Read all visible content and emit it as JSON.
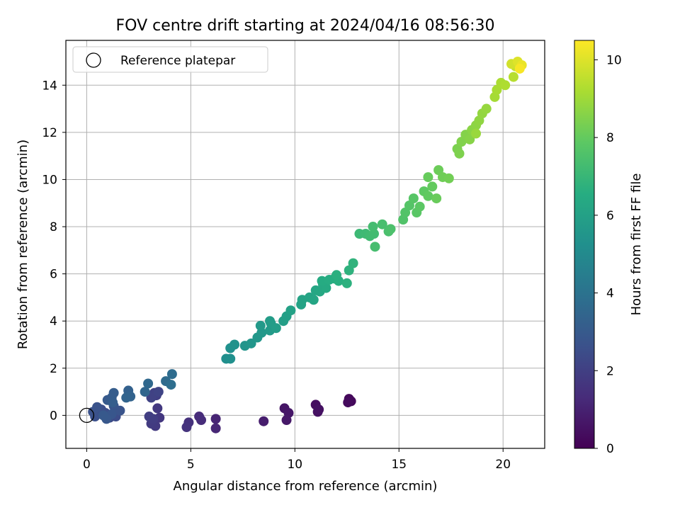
{
  "chart_data": {
    "type": "scatter",
    "title": "FOV centre drift starting at 2024/04/16 08:56:30",
    "xlabel": "Angular distance from reference (arcmin)",
    "ylabel": "Rotation from reference (arcmin)",
    "xlim": [
      -1,
      22
    ],
    "ylim": [
      -1.4,
      15.9
    ],
    "xticks": [
      0,
      5,
      10,
      15,
      20
    ],
    "yticks": [
      0,
      2,
      4,
      6,
      8,
      10,
      12,
      14
    ],
    "grid": true,
    "legend": {
      "position": "top-left",
      "entries": [
        "Reference platepar"
      ]
    },
    "colorbar": {
      "label": "Hours from first FF file",
      "colormap": "viridis",
      "range": [
        0,
        10.5
      ],
      "ticks": [
        0,
        2,
        4,
        6,
        8,
        10
      ]
    },
    "reference_point": {
      "x": 0,
      "y": 0
    },
    "points": [
      {
        "x": 12.6,
        "y": 0.7,
        "c": 0.2
      },
      {
        "x": 12.7,
        "y": 0.6,
        "c": 0.25
      },
      {
        "x": 12.55,
        "y": 0.55,
        "c": 0.3
      },
      {
        "x": 11.0,
        "y": 0.45,
        "c": 0.4
      },
      {
        "x": 11.1,
        "y": 0.15,
        "c": 0.45
      },
      {
        "x": 11.15,
        "y": 0.25,
        "c": 0.5
      },
      {
        "x": 9.5,
        "y": 0.3,
        "c": 0.6
      },
      {
        "x": 9.7,
        "y": 0.1,
        "c": 0.65
      },
      {
        "x": 9.6,
        "y": -0.2,
        "c": 0.7
      },
      {
        "x": 8.5,
        "y": -0.25,
        "c": 0.85
      },
      {
        "x": 6.2,
        "y": -0.15,
        "c": 1.1
      },
      {
        "x": 6.2,
        "y": -0.55,
        "c": 1.15
      },
      {
        "x": 5.4,
        "y": -0.05,
        "c": 1.3
      },
      {
        "x": 5.5,
        "y": -0.2,
        "c": 1.35
      },
      {
        "x": 4.9,
        "y": -0.3,
        "c": 1.5
      },
      {
        "x": 4.8,
        "y": -0.5,
        "c": 1.55
      },
      {
        "x": 3.5,
        "y": -0.1,
        "c": 1.7
      },
      {
        "x": 3.4,
        "y": 0.3,
        "c": 1.75
      },
      {
        "x": 3.3,
        "y": -0.45,
        "c": 1.8
      },
      {
        "x": 3.1,
        "y": -0.35,
        "c": 1.85
      },
      {
        "x": 3.2,
        "y": -0.15,
        "c": 1.9
      },
      {
        "x": 3.0,
        "y": -0.05,
        "c": 1.95
      },
      {
        "x": 3.35,
        "y": 0.85,
        "c": 2.0
      },
      {
        "x": 3.25,
        "y": 0.95,
        "c": 2.05
      },
      {
        "x": 3.1,
        "y": 0.75,
        "c": 2.1
      },
      {
        "x": 3.45,
        "y": 1.0,
        "c": 2.15
      },
      {
        "x": 1.1,
        "y": -0.1,
        "c": 2.4
      },
      {
        "x": 1.4,
        "y": -0.05,
        "c": 2.45
      },
      {
        "x": 0.9,
        "y": 0.1,
        "c": 2.5
      },
      {
        "x": 0.7,
        "y": 0.25,
        "c": 2.55
      },
      {
        "x": 0.4,
        "y": -0.05,
        "c": 2.6
      },
      {
        "x": 0.3,
        "y": 0.15,
        "c": 2.65
      },
      {
        "x": 0.5,
        "y": 0.35,
        "c": 2.7
      },
      {
        "x": 1.6,
        "y": 0.2,
        "c": 2.75
      },
      {
        "x": 1.3,
        "y": 0.4,
        "c": 2.8
      },
      {
        "x": 1.2,
        "y": 0.05,
        "c": 2.85
      },
      {
        "x": 0.95,
        "y": -0.15,
        "c": 2.9
      },
      {
        "x": 0.8,
        "y": 0.0,
        "c": 2.95
      },
      {
        "x": 1.0,
        "y": 0.65,
        "c": 3.0
      },
      {
        "x": 1.2,
        "y": 0.75,
        "c": 3.05
      },
      {
        "x": 1.3,
        "y": 0.95,
        "c": 3.1
      },
      {
        "x": 1.25,
        "y": 0.55,
        "c": 3.15
      },
      {
        "x": 2.0,
        "y": 1.05,
        "c": 3.3
      },
      {
        "x": 2.1,
        "y": 0.8,
        "c": 3.35
      },
      {
        "x": 1.9,
        "y": 0.75,
        "c": 3.4
      },
      {
        "x": 2.8,
        "y": 1.0,
        "c": 3.5
      },
      {
        "x": 2.95,
        "y": 1.35,
        "c": 3.55
      },
      {
        "x": 3.8,
        "y": 1.45,
        "c": 3.7
      },
      {
        "x": 4.1,
        "y": 1.75,
        "c": 3.75
      },
      {
        "x": 4.05,
        "y": 1.3,
        "c": 3.8
      },
      {
        "x": 6.7,
        "y": 2.4,
        "c": 5.2
      },
      {
        "x": 6.9,
        "y": 2.4,
        "c": 5.25
      },
      {
        "x": 6.9,
        "y": 2.85,
        "c": 5.3
      },
      {
        "x": 7.1,
        "y": 3.0,
        "c": 5.35
      },
      {
        "x": 7.6,
        "y": 2.95,
        "c": 5.45
      },
      {
        "x": 7.9,
        "y": 3.05,
        "c": 5.5
      },
      {
        "x": 8.2,
        "y": 3.3,
        "c": 5.55
      },
      {
        "x": 8.4,
        "y": 3.5,
        "c": 5.6
      },
      {
        "x": 8.35,
        "y": 3.8,
        "c": 5.65
      },
      {
        "x": 8.8,
        "y": 3.6,
        "c": 5.7
      },
      {
        "x": 8.85,
        "y": 3.9,
        "c": 5.75
      },
      {
        "x": 8.8,
        "y": 4.0,
        "c": 5.8
      },
      {
        "x": 9.1,
        "y": 3.7,
        "c": 5.85
      },
      {
        "x": 9.45,
        "y": 4.0,
        "c": 5.9
      },
      {
        "x": 9.6,
        "y": 4.2,
        "c": 5.95
      },
      {
        "x": 9.8,
        "y": 4.45,
        "c": 6.0
      },
      {
        "x": 10.3,
        "y": 4.7,
        "c": 6.05
      },
      {
        "x": 10.35,
        "y": 4.9,
        "c": 6.1
      },
      {
        "x": 10.7,
        "y": 5.0,
        "c": 6.15
      },
      {
        "x": 10.9,
        "y": 4.9,
        "c": 6.2
      },
      {
        "x": 11.0,
        "y": 5.3,
        "c": 6.25
      },
      {
        "x": 11.2,
        "y": 5.25,
        "c": 6.3
      },
      {
        "x": 11.35,
        "y": 5.55,
        "c": 6.35
      },
      {
        "x": 11.5,
        "y": 5.4,
        "c": 6.4
      },
      {
        "x": 11.3,
        "y": 5.7,
        "c": 6.45
      },
      {
        "x": 11.65,
        "y": 5.75,
        "c": 6.5
      },
      {
        "x": 11.9,
        "y": 5.8,
        "c": 6.55
      },
      {
        "x": 12.1,
        "y": 5.7,
        "c": 6.6
      },
      {
        "x": 12.0,
        "y": 5.95,
        "c": 6.65
      },
      {
        "x": 12.5,
        "y": 5.6,
        "c": 6.7
      },
      {
        "x": 12.6,
        "y": 6.15,
        "c": 6.75
      },
      {
        "x": 12.8,
        "y": 6.45,
        "c": 6.8
      },
      {
        "x": 13.1,
        "y": 7.7,
        "c": 7.1
      },
      {
        "x": 13.4,
        "y": 7.7,
        "c": 7.15
      },
      {
        "x": 13.6,
        "y": 7.6,
        "c": 7.2
      },
      {
        "x": 13.8,
        "y": 7.7,
        "c": 7.25
      },
      {
        "x": 13.75,
        "y": 8.0,
        "c": 7.3
      },
      {
        "x": 13.85,
        "y": 7.15,
        "c": 7.35
      },
      {
        "x": 14.2,
        "y": 8.1,
        "c": 7.4
      },
      {
        "x": 14.5,
        "y": 7.8,
        "c": 7.45
      },
      {
        "x": 14.6,
        "y": 7.9,
        "c": 7.5
      },
      {
        "x": 15.2,
        "y": 8.3,
        "c": 7.6
      },
      {
        "x": 15.3,
        "y": 8.6,
        "c": 7.65
      },
      {
        "x": 15.5,
        "y": 8.9,
        "c": 7.7
      },
      {
        "x": 15.7,
        "y": 9.2,
        "c": 7.75
      },
      {
        "x": 15.85,
        "y": 8.6,
        "c": 7.8
      },
      {
        "x": 16.0,
        "y": 8.85,
        "c": 7.85
      },
      {
        "x": 16.2,
        "y": 9.5,
        "c": 7.9
      },
      {
        "x": 16.4,
        "y": 9.3,
        "c": 7.95
      },
      {
        "x": 16.6,
        "y": 9.7,
        "c": 8.0
      },
      {
        "x": 16.4,
        "y": 10.1,
        "c": 8.05
      },
      {
        "x": 16.8,
        "y": 9.2,
        "c": 8.1
      },
      {
        "x": 16.9,
        "y": 10.4,
        "c": 8.15
      },
      {
        "x": 17.1,
        "y": 10.1,
        "c": 8.2
      },
      {
        "x": 17.4,
        "y": 10.05,
        "c": 8.25
      },
      {
        "x": 17.8,
        "y": 11.3,
        "c": 8.4
      },
      {
        "x": 17.9,
        "y": 11.1,
        "c": 8.45
      },
      {
        "x": 18.0,
        "y": 11.6,
        "c": 8.5
      },
      {
        "x": 18.2,
        "y": 11.9,
        "c": 8.55
      },
      {
        "x": 18.4,
        "y": 11.7,
        "c": 8.6
      },
      {
        "x": 18.5,
        "y": 12.1,
        "c": 8.65
      },
      {
        "x": 18.7,
        "y": 12.3,
        "c": 8.7
      },
      {
        "x": 18.85,
        "y": 12.5,
        "c": 8.75
      },
      {
        "x": 19.0,
        "y": 12.8,
        "c": 8.8
      },
      {
        "x": 19.2,
        "y": 13.0,
        "c": 8.85
      },
      {
        "x": 18.7,
        "y": 11.95,
        "c": 8.9
      },
      {
        "x": 19.6,
        "y": 13.5,
        "c": 9.1
      },
      {
        "x": 19.7,
        "y": 13.8,
        "c": 9.15
      },
      {
        "x": 19.9,
        "y": 14.1,
        "c": 9.2
      },
      {
        "x": 20.1,
        "y": 14.0,
        "c": 9.25
      },
      {
        "x": 20.5,
        "y": 14.35,
        "c": 9.4
      },
      {
        "x": 20.6,
        "y": 14.8,
        "c": 9.6
      },
      {
        "x": 20.4,
        "y": 14.9,
        "c": 9.8
      },
      {
        "x": 20.7,
        "y": 15.0,
        "c": 10.0
      },
      {
        "x": 20.9,
        "y": 14.85,
        "c": 10.2
      },
      {
        "x": 20.8,
        "y": 14.7,
        "c": 10.4
      }
    ]
  }
}
